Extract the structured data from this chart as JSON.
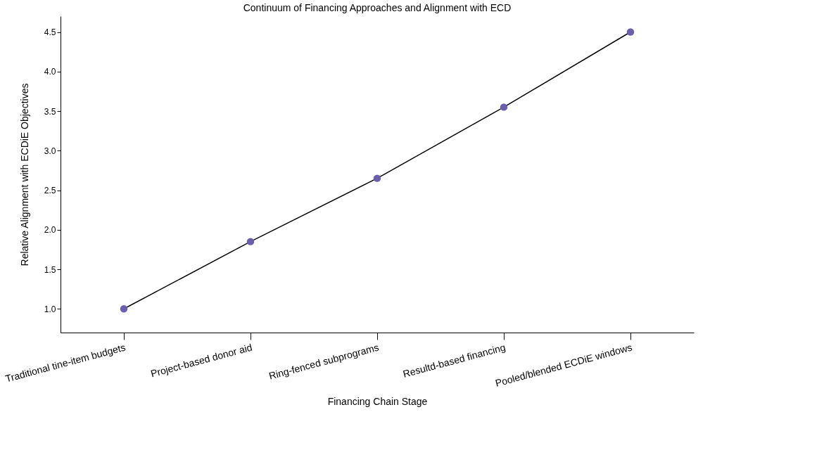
{
  "chart_data": {
    "type": "line",
    "title": "Continuum of Financing Approaches and Alignment with ECD",
    "xlabel": "Financing Chain Stage",
    "ylabel": "Relative Alignment with ECDiE Objectives",
    "categories": [
      "Traditional tine-item budgets",
      "Project-based donor aid",
      "Ring-fenced subprograms",
      "Resultd-based financing",
      "Pooled/blended ECDiE windows"
    ],
    "series": [
      {
        "color": "#6b5fad",
        "values": [
          1.0,
          1.85,
          2.65,
          3.55,
          4.5
        ]
      }
    ],
    "ylim": [
      0.7,
      4.7
    ],
    "yticks": [
      {
        "value": 1.0,
        "label": "1.0"
      },
      {
        "value": 1.5,
        "label": "1.5"
      },
      {
        "value": 2.0,
        "label": "2.0"
      },
      {
        "value": 2.5,
        "label": "2.5"
      },
      {
        "value": 3.0,
        "label": "3.0"
      },
      {
        "value": 3.5,
        "label": "3.5"
      },
      {
        "value": 4.0,
        "label": "4.0"
      },
      {
        "value": 4.5,
        "label": "4.5"
      }
    ],
    "grid": false,
    "marker": "circle",
    "line_style": "solid"
  }
}
